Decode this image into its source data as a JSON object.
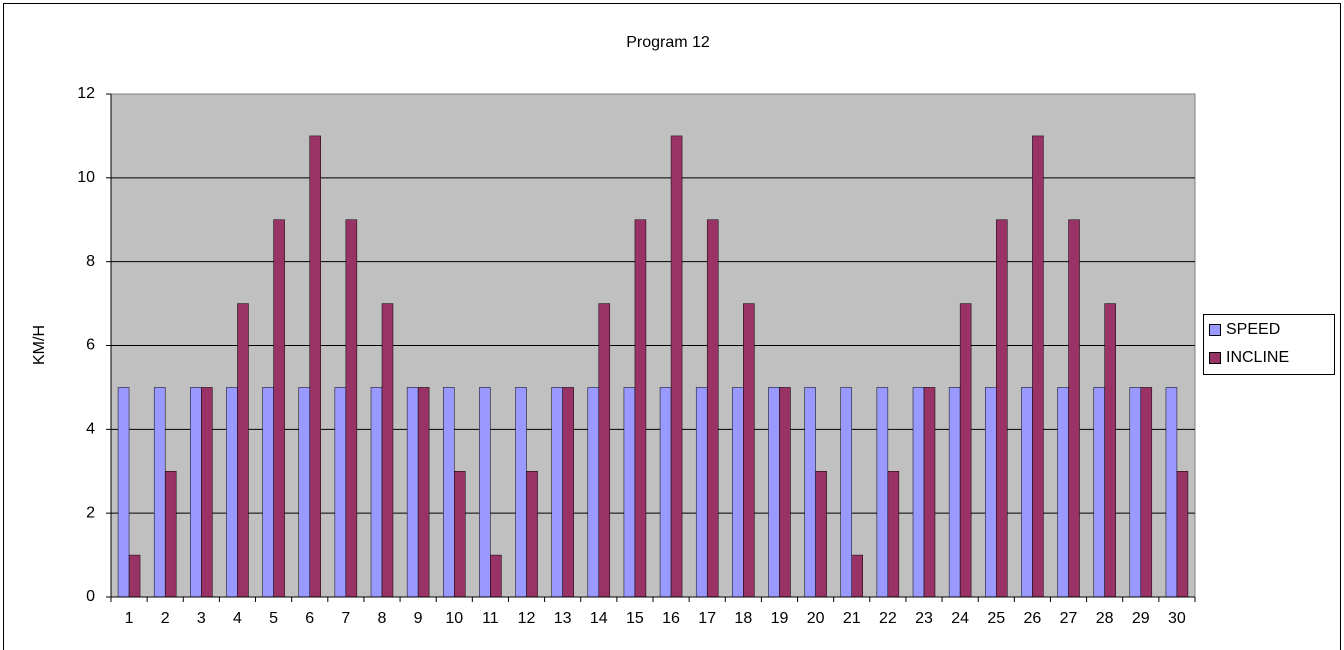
{
  "chart_data": {
    "type": "bar",
    "title": "Program 12",
    "y_label": "KM/H",
    "categories": [
      "1",
      "2",
      "3",
      "4",
      "5",
      "6",
      "7",
      "8",
      "9",
      "10",
      "11",
      "12",
      "13",
      "14",
      "15",
      "16",
      "17",
      "18",
      "19",
      "20",
      "21",
      "22",
      "23",
      "24",
      "25",
      "26",
      "27",
      "28",
      "29",
      "30"
    ],
    "series": [
      {
        "name": "SPEED",
        "color": "#9999ff",
        "values": [
          5,
          5,
          5,
          5,
          5,
          5,
          5,
          5,
          5,
          5,
          5,
          5,
          5,
          5,
          5,
          5,
          5,
          5,
          5,
          5,
          5,
          5,
          5,
          5,
          5,
          5,
          5,
          5,
          5,
          5
        ]
      },
      {
        "name": "INCLINE",
        "color": "#993366",
        "values": [
          1,
          3,
          5,
          7,
          9,
          11,
          9,
          7,
          5,
          3,
          1,
          3,
          5,
          7,
          9,
          11,
          9,
          7,
          5,
          3,
          1,
          3,
          5,
          7,
          9,
          11,
          9,
          7,
          5,
          3
        ]
      }
    ],
    "ylim": [
      0,
      12
    ],
    "yticks": [
      0,
      2,
      4,
      6,
      8,
      10,
      12
    ],
    "grid": true,
    "legend": "right"
  }
}
